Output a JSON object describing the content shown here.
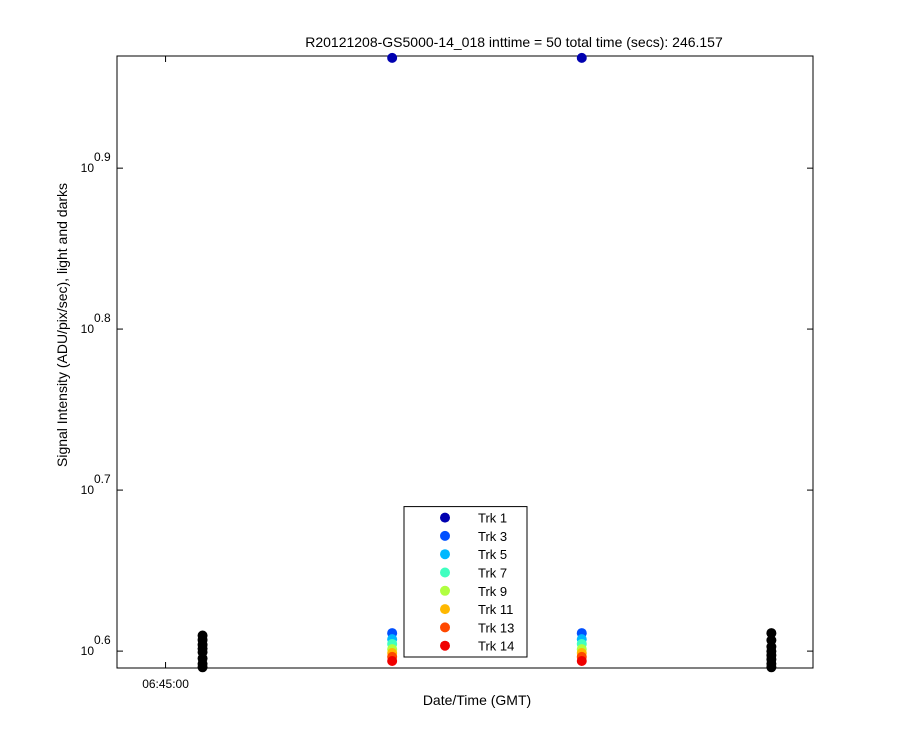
{
  "chart_data": {
    "type": "scatter",
    "title": "R20121208-GS5000-14_018 inttime = 50 total time (secs): 246.157",
    "x_label": "Date/Time (GMT)",
    "y_label": "Signal Intensity (ADU/pix/sec), light and darks",
    "yscale": "log",
    "xlim": [
      "06:44:39",
      "06:49:40"
    ],
    "ylim": [
      3.886,
      9.325
    ],
    "xticks": [
      "06:45:00"
    ],
    "yticks": [
      {
        "value": 3.981,
        "label": "10",
        "exponent": "0.6"
      },
      {
        "value": 5.012,
        "label": "10",
        "exponent": "0.7"
      },
      {
        "value": 6.31,
        "label": "10",
        "exponent": "0.8"
      },
      {
        "value": 7.943,
        "label": "10",
        "exponent": "0.9"
      }
    ],
    "legend": "bottom",
    "series": [
      {
        "name": "Trk 1",
        "color": "#0000b0",
        "x": [
          "06:46:38",
          "06:48:00"
        ],
        "values": [
          9.3,
          9.3
        ]
      },
      {
        "name": "Trk 3",
        "color": "#0050ff",
        "x": [
          "06:46:38",
          "06:48:00"
        ],
        "values": [
          4.085,
          4.085
        ]
      },
      {
        "name": "Trk 5",
        "color": "#00b8ff",
        "x": [
          "06:46:38",
          "06:48:00"
        ],
        "values": [
          4.05,
          4.05
        ]
      },
      {
        "name": "Trk 7",
        "color": "#40ffc0",
        "x": [
          "06:46:38",
          "06:48:00"
        ],
        "values": [
          4.022,
          4.022
        ]
      },
      {
        "name": "Trk 9",
        "color": "#b0ff40",
        "x": [
          "06:46:38",
          "06:48:00"
        ],
        "values": [
          3.992,
          3.992
        ]
      },
      {
        "name": "Trk 11",
        "color": "#ffb800",
        "x": [
          "06:46:38",
          "06:48:00"
        ],
        "values": [
          3.97,
          3.97
        ]
      },
      {
        "name": "Trk 13",
        "color": "#ff4800",
        "x": [
          "06:46:38",
          "06:48:00"
        ],
        "values": [
          3.948,
          3.948
        ]
      },
      {
        "name": "Trk 14",
        "color": "#f00000",
        "x": [
          "06:46:38",
          "06:48:00"
        ],
        "values": [
          3.925,
          3.925
        ]
      },
      {
        "color": "#000000",
        "x": [
          "06:45:16",
          "06:49:22"
        ],
        "values": [
          4.071,
          4.085
        ]
      },
      {
        "color": "#000000",
        "x": [
          "06:45:16",
          "06:49:22"
        ],
        "values": [
          4.045,
          4.043
        ]
      },
      {
        "color": "#000000",
        "x": [
          "06:45:16",
          "06:49:22"
        ],
        "values": [
          4.017,
          4.006
        ]
      },
      {
        "color": "#000000",
        "x": [
          "06:45:16",
          "06:49:22"
        ],
        "values": [
          3.995,
          3.981
        ]
      },
      {
        "color": "#000000",
        "x": [
          "06:45:16",
          "06:49:22"
        ],
        "values": [
          3.975,
          3.957
        ]
      },
      {
        "color": "#000000",
        "x": [
          "06:45:16",
          "06:49:22"
        ],
        "values": [
          3.94,
          3.934
        ]
      },
      {
        "color": "#000000",
        "x": [
          "06:45:16",
          "06:49:22"
        ],
        "values": [
          3.91,
          3.91
        ]
      },
      {
        "color": "#000000",
        "x": [
          "06:45:16",
          "06:49:22"
        ],
        "values": [
          3.89,
          3.89
        ]
      }
    ]
  }
}
